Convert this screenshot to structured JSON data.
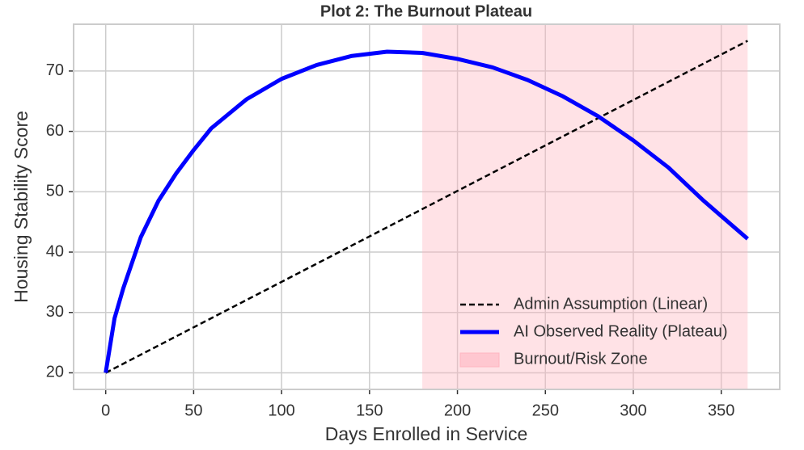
{
  "chart_data": {
    "type": "line",
    "title": "Plot 2: The Burnout Plateau",
    "xlabel": "Days Enrolled in Service",
    "ylabel": "Housing Stability Score",
    "series": [
      {
        "name": "Admin Assumption (Linear)",
        "color": "#000000",
        "linestyle": "dashed",
        "x": [
          0,
          365
        ],
        "values": [
          20,
          75
        ]
      },
      {
        "name": "AI Observed Reality (Plateau)",
        "color": "#0000ff",
        "linestyle": "solid",
        "x": [
          0,
          5,
          10,
          20,
          30,
          40,
          50,
          60,
          80,
          100,
          120,
          140,
          160,
          180,
          200,
          220,
          240,
          260,
          280,
          300,
          320,
          340,
          365
        ],
        "values": [
          20,
          29,
          34,
          42.5,
          48.5,
          53,
          56.9,
          60.5,
          65.3,
          68.7,
          71,
          72.5,
          73.2,
          73,
          72,
          70.6,
          68.5,
          65.8,
          62.5,
          58.5,
          54,
          48.5,
          42.2
        ]
      }
    ],
    "spans": [
      {
        "name": "Burnout/Risk Zone",
        "color": "#ffb6c1",
        "x": [
          180,
          365
        ]
      }
    ],
    "xlim": [
      -18.25,
      383.25
    ],
    "xticks": [
      0,
      50,
      100,
      150,
      200,
      250,
      300,
      350
    ],
    "ylim": [
      17.25,
      77.75
    ],
    "yticks": [
      20,
      30,
      40,
      50,
      60,
      70
    ],
    "grid": true,
    "legend": "lower right"
  }
}
